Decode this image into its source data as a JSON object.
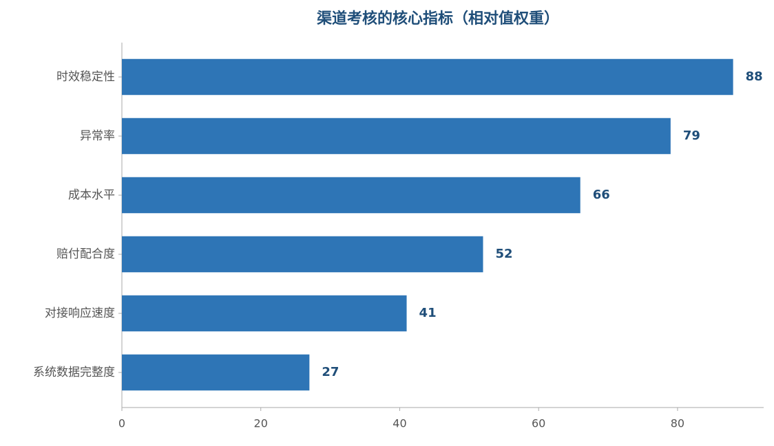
{
  "chart_data": {
    "type": "barh",
    "title": "渠道考核的核心指标（相对值权重）",
    "categories": [
      "时效稳定性",
      "异常率",
      "成本水平",
      "赔付配合度",
      "对接响应速度",
      "系统数据完整度"
    ],
    "values": [
      88,
      79,
      66,
      52,
      41,
      27
    ],
    "color": "#2e75b6",
    "label_color": "#1f4e79",
    "xlim": [
      0,
      92.4
    ],
    "xticks": [
      0,
      20,
      40,
      60,
      80
    ],
    "grid": false
  }
}
